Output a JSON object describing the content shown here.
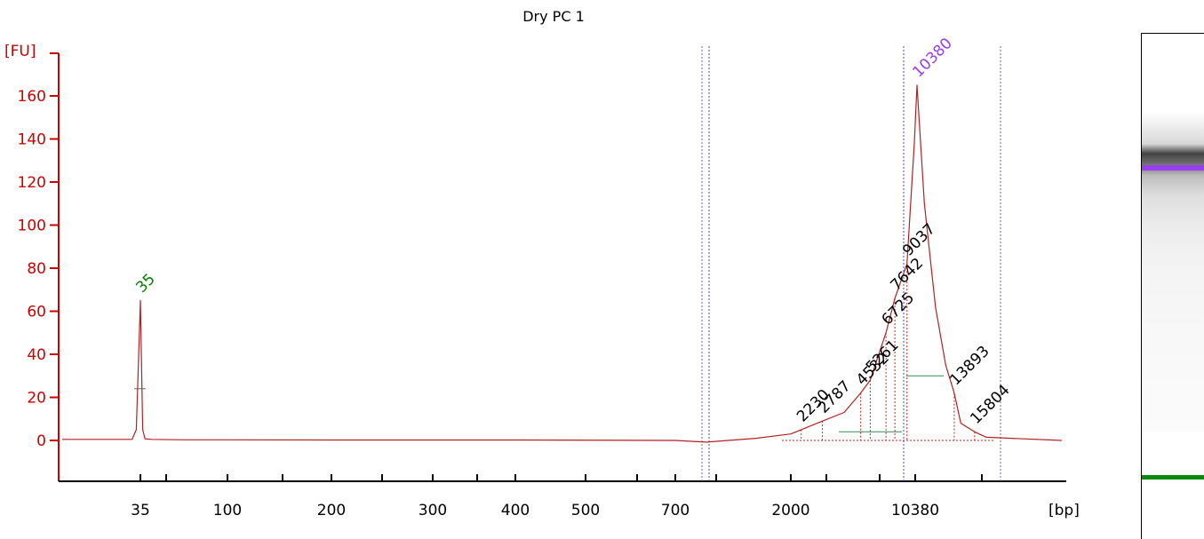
{
  "chart_data": {
    "type": "line",
    "title": "Dry PC 1",
    "ylabel": "[FU]",
    "xlabel": "[bp]",
    "ylim": [
      -18,
      172
    ],
    "yticks": [
      0,
      20,
      40,
      60,
      80,
      100,
      120,
      140,
      160
    ],
    "xticks": [
      "35",
      "100",
      "200",
      "300",
      "400",
      "500",
      "700",
      "2000",
      "10380"
    ],
    "series": [
      {
        "x_bp": [
          20,
          33,
          34,
          35,
          36,
          37,
          40,
          60,
          100,
          200,
          400,
          700,
          1000,
          1500,
          2000,
          2230,
          2787,
          3500,
          4532,
          5261,
          6000,
          6725,
          7642,
          9037,
          10000,
          10380,
          11000,
          12000,
          13000,
          13893,
          14500,
          15804,
          17000,
          19000
        ],
        "y_fu": [
          0.5,
          0.5,
          5,
          65,
          5,
          0.8,
          0.5,
          0.3,
          0.3,
          0.2,
          0.2,
          0,
          -0.8,
          1,
          3,
          5,
          9,
          13,
          22,
          28,
          40,
          50,
          66,
          82,
          138,
          165,
          110,
          62,
          35,
          22,
          8,
          4,
          1.5,
          0
        ]
      }
    ],
    "peaks": [
      {
        "label": "35",
        "x_bp": 35,
        "y_fu": 65,
        "color": "#008000"
      },
      {
        "label": "2230",
        "x_bp": 2230,
        "y_fu": 5,
        "color": "#000000"
      },
      {
        "label": "2787",
        "x_bp": 2787,
        "y_fu": 9,
        "color": "#000000"
      },
      {
        "label": "4532",
        "x_bp": 4532,
        "y_fu": 22,
        "color": "#000000"
      },
      {
        "label": "5261",
        "x_bp": 5261,
        "y_fu": 28,
        "color": "#000000"
      },
      {
        "label": "6725",
        "x_bp": 6725,
        "y_fu": 50,
        "color": "#000000"
      },
      {
        "label": "7642",
        "x_bp": 7642,
        "y_fu": 66,
        "color": "#000000"
      },
      {
        "label": "9037",
        "x_bp": 9037,
        "y_fu": 82,
        "color": "#000000"
      },
      {
        "label": "10380",
        "x_bp": 10380,
        "y_fu": 165,
        "color": "#9a3cf0"
      },
      {
        "label": "13893",
        "x_bp": 13893,
        "y_fu": 22,
        "color": "#000000"
      },
      {
        "label": "15804",
        "x_bp": 15804,
        "y_fu": 4,
        "color": "#000000"
      }
    ],
    "colors": {
      "axis": "#cc0000",
      "trace": "#b22222",
      "marker_peak": "#008000",
      "upper_peak": "#9a3cf0"
    },
    "grid": false,
    "legend": "none"
  },
  "gel": {
    "upper_band_color": "#9a3cf0",
    "marker_band_color": "#0a8a0a"
  }
}
